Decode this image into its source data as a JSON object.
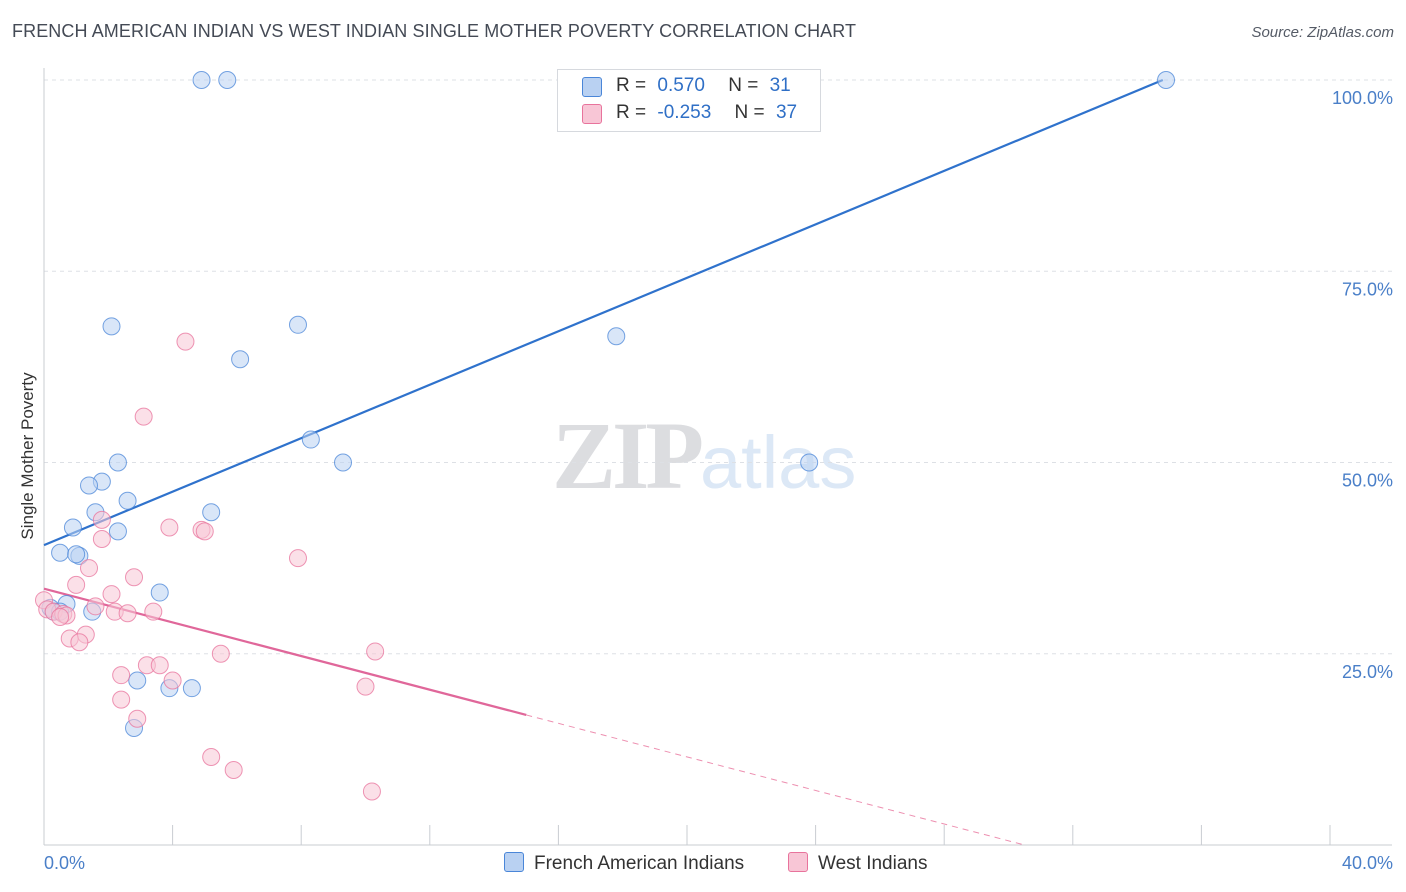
{
  "title": "FRENCH AMERICAN INDIAN VS WEST INDIAN SINGLE MOTHER POVERTY CORRELATION CHART",
  "source": "Source: ZipAtlas.com",
  "watermark": {
    "zip": "ZIP",
    "atlas": "atlas"
  },
  "legend": {
    "series1": {
      "r_label": "R =",
      "r_value": "0.570",
      "n_label": "N =",
      "n_value": "31"
    },
    "series2": {
      "r_label": "R =",
      "r_value": "-0.253",
      "n_label": "N =",
      "n_value": "37"
    }
  },
  "chart_data": {
    "type": "scatter",
    "title": "FRENCH AMERICAN INDIAN VS WEST INDIAN SINGLE MOTHER POVERTY CORRELATION CHART",
    "xlabel": "",
    "ylabel": "Single Mother Poverty",
    "xlim": [
      0,
      40
    ],
    "ylim": [
      0,
      100
    ],
    "x_tick_labels": [
      "0.0%",
      "40.0%"
    ],
    "y_ticks": [
      25,
      50,
      75,
      100
    ],
    "y_tick_labels": [
      "25.0%",
      "50.0%",
      "75.0%",
      "100.0%"
    ],
    "legend_position": "top-center",
    "colors": {
      "french": "#4a86d8",
      "west": "#e8739c",
      "french_fill": "#b9d1f2",
      "west_fill": "#f8c6d6"
    },
    "series": [
      {
        "name": "French American Indians",
        "r": 0.57,
        "n": 31,
        "trend": {
          "x0": 0.0,
          "y0": 39.2,
          "x1": 34.8,
          "y1": 100.0
        },
        "points": [
          [
            4.9,
            100
          ],
          [
            5.7,
            100
          ],
          [
            34.9,
            100
          ],
          [
            2.1,
            67.8
          ],
          [
            7.9,
            68.0
          ],
          [
            17.8,
            66.5
          ],
          [
            6.1,
            63.5
          ],
          [
            8.3,
            53.0
          ],
          [
            2.3,
            50.0
          ],
          [
            9.3,
            50.0
          ],
          [
            23.8,
            50.0
          ],
          [
            1.8,
            47.5
          ],
          [
            1.4,
            47.0
          ],
          [
            2.6,
            45.0
          ],
          [
            1.6,
            43.5
          ],
          [
            5.2,
            43.5
          ],
          [
            0.9,
            41.5
          ],
          [
            2.3,
            41.0
          ],
          [
            0.5,
            38.2
          ],
          [
            1.1,
            37.8
          ],
          [
            1.0,
            38.0
          ],
          [
            3.6,
            33.0
          ],
          [
            0.7,
            31.5
          ],
          [
            0.2,
            31.0
          ],
          [
            0.3,
            30.5
          ],
          [
            0.5,
            30.5
          ],
          [
            1.5,
            30.5
          ],
          [
            2.9,
            21.5
          ],
          [
            3.9,
            20.5
          ],
          [
            4.6,
            20.5
          ],
          [
            2.8,
            15.3
          ]
        ]
      },
      {
        "name": "West Indians",
        "r": -0.253,
        "n": 37,
        "trend": {
          "x0": 0.0,
          "y0": 33.5,
          "x1": 15.0,
          "y1": 17.0
        },
        "trend_extension": {
          "x0": 15.0,
          "y0": 17.0,
          "x1": 30.5,
          "y1": 0.0
        },
        "points": [
          [
            4.4,
            65.8
          ],
          [
            3.1,
            56.0
          ],
          [
            1.8,
            42.5
          ],
          [
            3.9,
            41.5
          ],
          [
            4.9,
            41.2
          ],
          [
            5.0,
            41.0
          ],
          [
            1.8,
            40.0
          ],
          [
            7.9,
            37.5
          ],
          [
            1.4,
            36.2
          ],
          [
            2.8,
            35.0
          ],
          [
            1.0,
            34.0
          ],
          [
            2.1,
            32.8
          ],
          [
            0.0,
            32.0
          ],
          [
            1.6,
            31.2
          ],
          [
            0.1,
            30.8
          ],
          [
            0.3,
            30.5
          ],
          [
            0.6,
            30.2
          ],
          [
            2.2,
            30.5
          ],
          [
            2.6,
            30.3
          ],
          [
            3.4,
            30.5
          ],
          [
            0.7,
            30.0
          ],
          [
            0.5,
            29.8
          ],
          [
            1.3,
            27.5
          ],
          [
            0.8,
            27.0
          ],
          [
            1.1,
            26.5
          ],
          [
            10.3,
            25.3
          ],
          [
            5.5,
            25.0
          ],
          [
            3.2,
            23.5
          ],
          [
            3.6,
            23.5
          ],
          [
            2.4,
            22.2
          ],
          [
            4.0,
            21.5
          ],
          [
            10.0,
            20.7
          ],
          [
            2.4,
            19.0
          ],
          [
            2.9,
            16.5
          ],
          [
            5.2,
            11.5
          ],
          [
            5.9,
            9.8
          ],
          [
            10.2,
            7.0
          ]
        ]
      }
    ]
  }
}
